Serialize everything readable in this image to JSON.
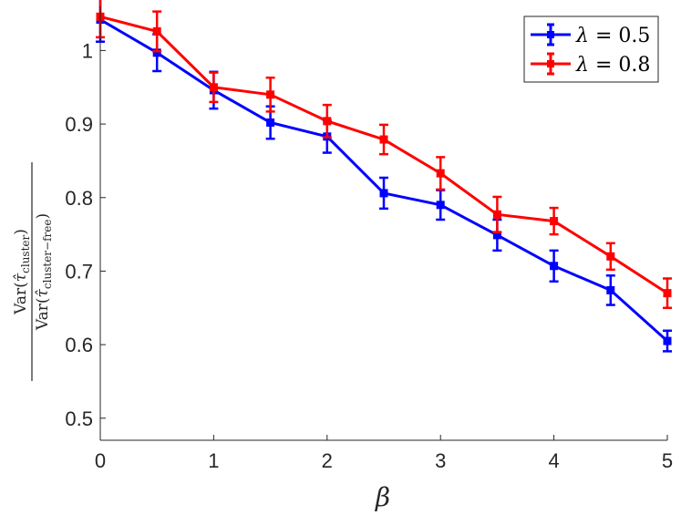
{
  "chart_data": {
    "type": "line",
    "xlabel": "β",
    "ylabel": {
      "num_prefix": "Var(",
      "num_symbol": "τ̂",
      "num_sub": "cluster",
      "num_suffix": ")",
      "den_prefix": "Var(",
      "den_symbol": "τ̂",
      "den_sub": "cluster−free",
      "den_suffix": ")"
    },
    "xlim": [
      0,
      5
    ],
    "ylim": [
      0.47,
      1.06
    ],
    "x": [
      0,
      0.5,
      1,
      1.5,
      2,
      2.5,
      3,
      3.5,
      4,
      4.5,
      5
    ],
    "x_ticks": [
      "0",
      "1",
      "2",
      "3",
      "4",
      "5"
    ],
    "y_ticks": [
      "0.5",
      "0.6",
      "0.7",
      "0.8",
      "0.9",
      "1"
    ],
    "grid": false,
    "legend_position": "top-right",
    "series": [
      {
        "name_symbol": "λ",
        "name_value": " = 0.5",
        "color": "#0000ff",
        "values": [
          1.042,
          0.997,
          0.946,
          0.902,
          0.883,
          0.806,
          0.79,
          0.749,
          0.707,
          0.674,
          0.605
        ],
        "errors": [
          0.03,
          0.025,
          0.025,
          0.022,
          0.022,
          0.021,
          0.02,
          0.021,
          0.021,
          0.02,
          0.014
        ]
      },
      {
        "name_symbol": "λ",
        "name_value": " = 0.8",
        "color": "#ff0000",
        "values": [
          1.046,
          1.026,
          0.95,
          0.94,
          0.904,
          0.879,
          0.833,
          0.777,
          0.768,
          0.72,
          0.67
        ],
        "errors": [
          0.028,
          0.027,
          0.02,
          0.023,
          0.022,
          0.02,
          0.022,
          0.024,
          0.018,
          0.018,
          0.02
        ]
      }
    ]
  }
}
